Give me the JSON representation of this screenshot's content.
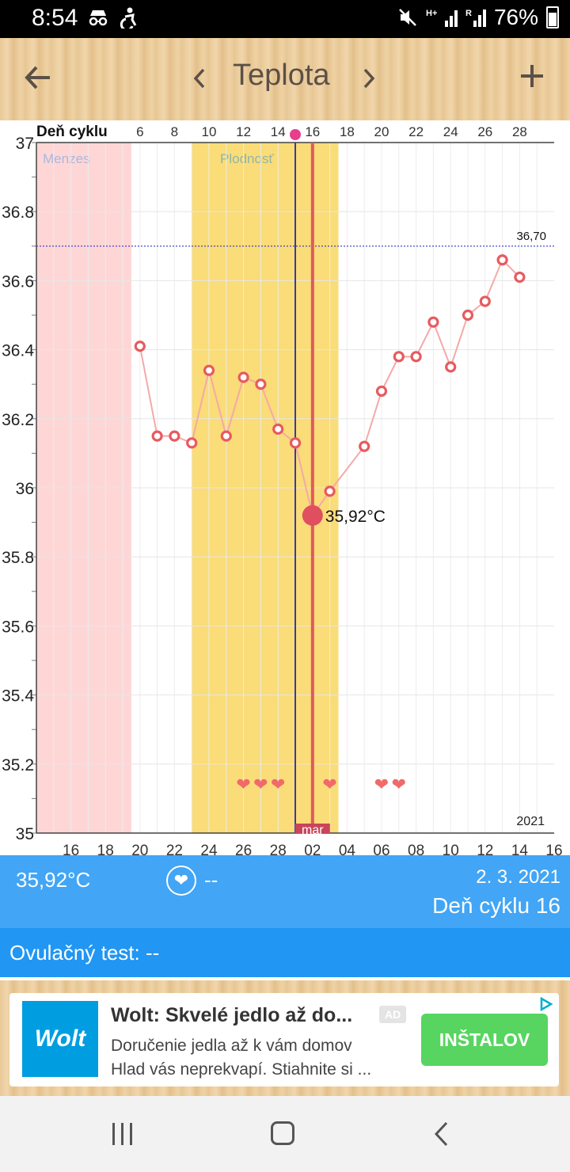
{
  "status_bar": {
    "time": "8:54",
    "battery": "76%",
    "left_icons": [
      "incognito-icon",
      "accessibility-icon"
    ],
    "right_icons": [
      "mute-icon",
      "hplus-signal-icon",
      "roaming-signal-icon",
      "battery-icon"
    ]
  },
  "app_bar": {
    "title": "Teplota",
    "back_icon": "arrow-left-icon",
    "prev_icon": "chevron-left-icon",
    "next_icon": "chevron-right-icon",
    "add_icon": "plus-icon"
  },
  "chart_data": {
    "type": "line",
    "top_axis_label": "Deň cyklu",
    "cycle_day_ticks": [
      "6",
      "8",
      "10",
      "12",
      "14",
      "16",
      "18",
      "20",
      "22",
      "24",
      "26",
      "28"
    ],
    "date_ticks": [
      "16",
      "18",
      "20",
      "22",
      "24",
      "26",
      "28",
      "02",
      "04",
      "06",
      "08",
      "10",
      "12",
      "14",
      "16"
    ],
    "ylim": [
      35,
      37
    ],
    "y_ticks": [
      "37",
      "36.8",
      "36.6",
      "36.4",
      "36.2",
      "36",
      "35.8",
      "35.6",
      "35.4",
      "35.2",
      "35"
    ],
    "series": [
      {
        "values": [
          {
            "date": "2021-02-20",
            "cycle_day": 6,
            "temp": 36.41
          },
          {
            "date": "2021-02-21",
            "cycle_day": 7,
            "temp": 36.15
          },
          {
            "date": "2021-02-22",
            "cycle_day": 8,
            "temp": 36.15
          },
          {
            "date": "2021-02-23",
            "cycle_day": 9,
            "temp": 36.13
          },
          {
            "date": "2021-02-24",
            "cycle_day": 10,
            "temp": 36.34
          },
          {
            "date": "2021-02-25",
            "cycle_day": 11,
            "temp": 36.15
          },
          {
            "date": "2021-02-26",
            "cycle_day": 12,
            "temp": 36.32
          },
          {
            "date": "2021-02-27",
            "cycle_day": 13,
            "temp": 36.3
          },
          {
            "date": "2021-02-28",
            "cycle_day": 14,
            "temp": 36.17
          },
          {
            "date": "2021-03-01",
            "cycle_day": 15,
            "temp": 36.13
          },
          {
            "date": "2021-03-02",
            "cycle_day": 16,
            "temp": 35.92
          },
          {
            "date": "2021-03-03",
            "cycle_day": 17,
            "temp": 35.99
          },
          {
            "date": "2021-03-05",
            "cycle_day": 19,
            "temp": 36.12
          },
          {
            "date": "2021-03-06",
            "cycle_day": 20,
            "temp": 36.28
          },
          {
            "date": "2021-03-07",
            "cycle_day": 21,
            "temp": 36.38
          },
          {
            "date": "2021-03-08",
            "cycle_day": 22,
            "temp": 36.38
          },
          {
            "date": "2021-03-09",
            "cycle_day": 23,
            "temp": 36.48
          },
          {
            "date": "2021-03-10",
            "cycle_day": 24,
            "temp": 36.35
          },
          {
            "date": "2021-03-11",
            "cycle_day": 25,
            "temp": 36.5
          },
          {
            "date": "2021-03-12",
            "cycle_day": 26,
            "temp": 36.54
          },
          {
            "date": "2021-03-13",
            "cycle_day": 27,
            "temp": 36.66
          },
          {
            "date": "2021-03-14",
            "cycle_day": 28,
            "temp": 36.61
          }
        ]
      }
    ],
    "coverline": {
      "value": 36.7,
      "label": "36,70"
    },
    "selected": {
      "date": "2021-03-02",
      "temp": 35.92,
      "label": "35,92°C"
    },
    "ovulation_date": "2021-03-01",
    "bands": [
      {
        "label": "Menzes",
        "from": "2021-02-15",
        "to": "2021-02-19",
        "color": "#ffd6d6"
      },
      {
        "label": "Plodnosť",
        "from": "2021-02-24",
        "to": "2021-03-03",
        "color": "#fadc78"
      }
    ],
    "heart_dates": [
      "2021-02-26",
      "2021-02-27",
      "2021-02-28",
      "2021-03-03",
      "2021-03-06",
      "2021-03-07"
    ],
    "month_label": "mar",
    "year_label": "2021",
    "colors": {
      "line": "#f4a9a9",
      "marker": "#e75a5f",
      "selected": "#e04f5f",
      "ovulation_line": "#3a3aa8",
      "today_line": "#e05a5a",
      "coverline": "#3333cc",
      "hearts": "#f06a6a"
    }
  },
  "info_panel": {
    "temperature": "35,92°C",
    "heart_value": "--",
    "date": "2. 3. 2021",
    "cycle_day": "Deň cyklu 16"
  },
  "ovulation": {
    "label": "Ovulačný test: --"
  },
  "ad": {
    "logo": "Wolt",
    "title": "Wolt: Skvelé jedlo až do...",
    "badge": "AD",
    "desc_line1": "Doručenie jedla až k vám domov",
    "desc_line2": "Hlad vás neprekvapí. Stiahnite si ...",
    "install": "INŠTALOV"
  },
  "nav_bar": {
    "icons": [
      "recents-icon",
      "home-icon",
      "back-icon"
    ]
  },
  "colors": {
    "panel": "#42a5f5",
    "ovulation_bar": "#2196f3",
    "install": "#57d560"
  }
}
